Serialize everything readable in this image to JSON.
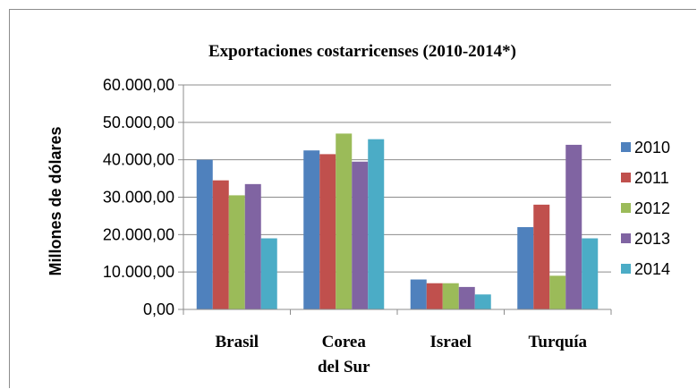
{
  "chart_data": {
    "type": "bar",
    "title": "Exportaciones costarricenses (2010-2014*)",
    "ylabel": "Millones de dólares",
    "xlabel": "",
    "ylim": [
      0,
      60000
    ],
    "yticks": [
      "0,00",
      "10.000,00",
      "20.000,00",
      "30.000,00",
      "40.000,00",
      "50.000,00",
      "60.000,00"
    ],
    "categories": [
      "Brasil",
      "Corea del Sur",
      "Israel",
      "Turquía"
    ],
    "category_lines": [
      [
        "Brasil"
      ],
      [
        "Corea",
        "del Sur"
      ],
      [
        "Israel"
      ],
      [
        "Turquía"
      ]
    ],
    "series": [
      {
        "name": "2010",
        "color": "#4f81bd",
        "values": [
          40000,
          42500,
          8000,
          22000
        ]
      },
      {
        "name": "2011",
        "color": "#c0504d",
        "values": [
          34500,
          41500,
          7000,
          28000
        ]
      },
      {
        "name": "2012",
        "color": "#9bbb59",
        "values": [
          30500,
          47000,
          7000,
          9000
        ]
      },
      {
        "name": "2013",
        "color": "#8064a2",
        "values": [
          33500,
          39500,
          6000,
          44000
        ]
      },
      {
        "name": "2014",
        "color": "#4bacc6",
        "values": [
          19000,
          45500,
          4000,
          19000
        ]
      }
    ],
    "grid": true,
    "legend_position": "right"
  }
}
